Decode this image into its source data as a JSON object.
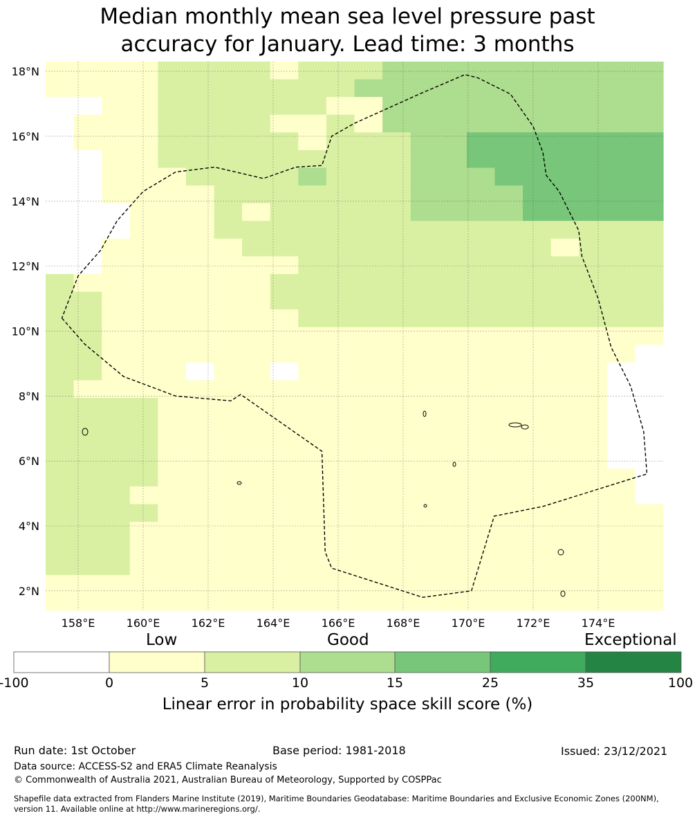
{
  "title_line1": "Median monthly mean sea level pressure past",
  "title_line2": "accuracy for January. Lead time: 3 months",
  "map": {
    "lon_range": [
      157,
      176
    ],
    "lat_range": [
      1.4,
      18.3
    ],
    "lon_ticks": [
      "158°E",
      "160°E",
      "162°E",
      "164°E",
      "166°E",
      "168°E",
      "170°E",
      "172°E",
      "174°E"
    ],
    "lat_ticks": [
      "18°N",
      "16°N",
      "14°N",
      "12°N",
      "10°N",
      "8°N",
      "6°N",
      "4°N",
      "2°N"
    ],
    "grid_rows_top_to_bottom": [
      "1111222212223333333333",
      "1111222222233333333333",
      "0011222222113333333333",
      "0111222211213333333333",
      "0111222221222334444444",
      "0011222222222334444444",
      "0011122223222333444444",
      "0011112222222333344444",
      "0001112122222333344444",
      "0001112222222222222222",
      "0011111222222222221222",
      "0011111112222222222222",
      "2111111122222222222222",
      "2211111122222222222222",
      "2211111112222222222222",
      "2211111111111111111111",
      "2211111111111111111110",
      "2211101101111111111100",
      "2111111111111111111100",
      "2222111111111111111100",
      "2222111111111111111100",
      "2222111111111111111100",
      "2222111111111111111100",
      "2222111111111111111110",
      "2221111111111111111110",
      "2222111111111111111111",
      "2221111111111111111111",
      "2221111111111111111111",
      "2221111111111111111111",
      "1111111111111111111111",
      "1111111111111111111111"
    ],
    "region_boundary_lonlat": [
      [
        157.5,
        10.4
      ],
      [
        158.2,
        9.6
      ],
      [
        159.4,
        8.6
      ],
      [
        161.0,
        8.0
      ],
      [
        162.7,
        7.85
      ],
      [
        163.0,
        8.05
      ],
      [
        165.5,
        6.3
      ],
      [
        165.6,
        3.2
      ],
      [
        165.8,
        2.7
      ],
      [
        168.6,
        1.8
      ],
      [
        170.1,
        2.0
      ],
      [
        170.8,
        4.3
      ],
      [
        172.3,
        4.6
      ],
      [
        175.5,
        5.6
      ],
      [
        175.4,
        6.9
      ],
      [
        175.0,
        8.3
      ],
      [
        174.4,
        9.5
      ],
      [
        174.0,
        11.0
      ],
      [
        173.5,
        12.3
      ],
      [
        173.4,
        13.1
      ],
      [
        172.8,
        14.3
      ],
      [
        172.4,
        14.8
      ],
      [
        172.3,
        15.5
      ],
      [
        172.0,
        16.3
      ],
      [
        171.3,
        17.3
      ],
      [
        170.3,
        17.8
      ],
      [
        169.9,
        17.9
      ],
      [
        168.5,
        17.3
      ],
      [
        166.5,
        16.4
      ],
      [
        165.8,
        16.0
      ],
      [
        165.5,
        15.1
      ],
      [
        164.7,
        15.05
      ],
      [
        163.7,
        14.7
      ],
      [
        162.2,
        15.05
      ],
      [
        161.0,
        14.9
      ],
      [
        160.0,
        14.3
      ],
      [
        159.2,
        13.4
      ],
      [
        158.7,
        12.5
      ],
      [
        158.0,
        11.7
      ],
      [
        157.5,
        10.4
      ]
    ]
  },
  "colorbar": {
    "category_words": [
      "Low",
      "Good",
      "Exceptional"
    ],
    "tick_labels": [
      "-100",
      "0",
      "5",
      "10",
      "15",
      "25",
      "35",
      "100"
    ],
    "colors": [
      "#ffffff",
      "#ffffcc",
      "#d9f0a3",
      "#addd8e",
      "#78c679",
      "#41ab5d",
      "#238443"
    ],
    "label": "Linear error in probability space skill score (%)"
  },
  "footer": {
    "run_date": "Run date: 1st October",
    "base_period": "Base period: 1981-2018",
    "issued": "Issued: 23/12/2021",
    "data_source": "Data source: ACCESS-S2 and ERA5 Climate Reanalysis",
    "copyright": "© Commonwealth of Australia 2021, Australian Bureau of Meteorology, Supported by COSPPac",
    "shapefile_line1": "Shapefile data extracted from Flanders Marine Institute (2019), Maritime Boundaries Geodatabase: Maritime Boundaries and Exclusive Economic Zones (200NM),",
    "shapefile_line2": "version 11. Available online at http://www.marineregions.org/."
  }
}
